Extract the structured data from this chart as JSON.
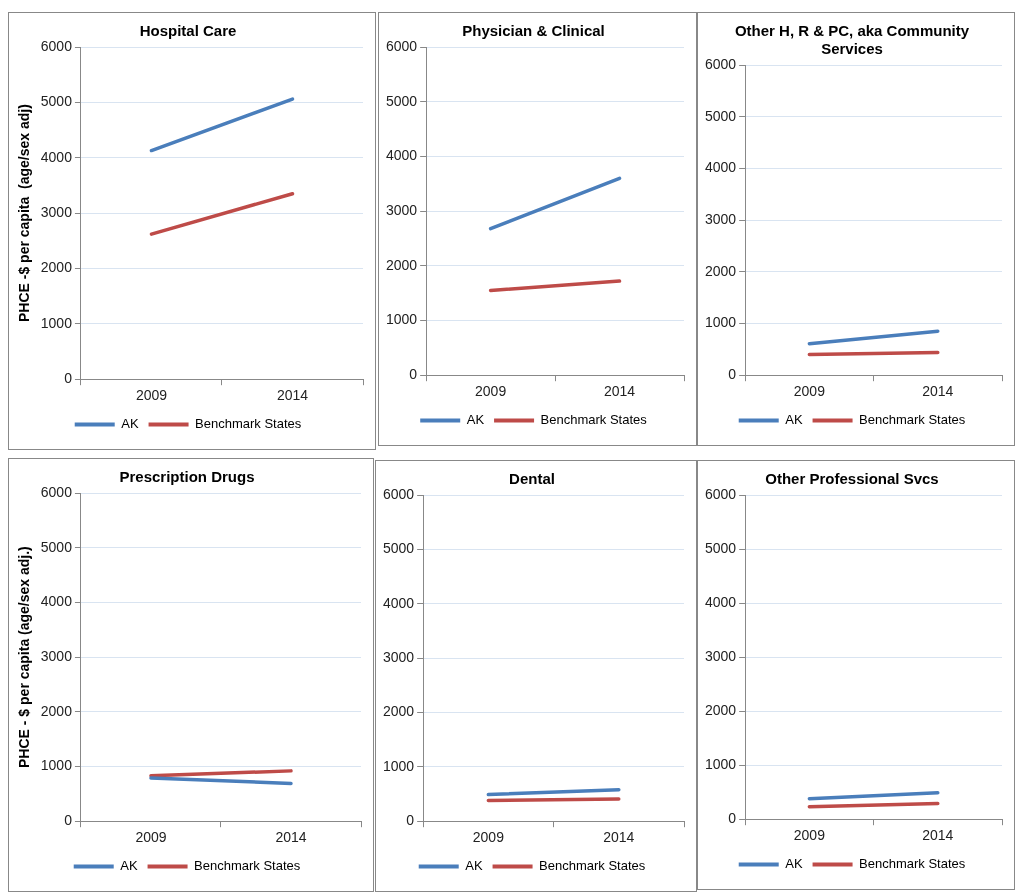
{
  "chart_data": [
    {
      "type": "line",
      "title": "Hospital Care",
      "ylabel": "PHCE -$ per capita  (age/sex adj)",
      "categories": [
        "2009",
        "2014"
      ],
      "series": [
        {
          "name": "AK",
          "color": "#4a7ebb",
          "values": [
            4130,
            5060
          ]
        },
        {
          "name": "Benchmark States",
          "color": "#be4b48",
          "values": [
            2620,
            3350
          ]
        }
      ],
      "ylim": [
        0,
        6000
      ],
      "yticks": [
        0,
        1000,
        2000,
        3000,
        4000,
        5000,
        6000
      ],
      "grid": "y",
      "legend": "bottom",
      "marker": "none",
      "line_style": "solid"
    },
    {
      "type": "line",
      "title": "Physician & Clinical",
      "categories": [
        "2009",
        "2014"
      ],
      "series": [
        {
          "name": "AK",
          "color": "#4a7ebb",
          "values": [
            2680,
            3600
          ]
        },
        {
          "name": "Benchmark States",
          "color": "#be4b48",
          "values": [
            1550,
            1720
          ]
        }
      ],
      "ylim": [
        0,
        6000
      ],
      "yticks": [
        0,
        1000,
        2000,
        3000,
        4000,
        5000,
        6000
      ],
      "grid": "y",
      "legend": "bottom",
      "marker": "none",
      "line_style": "solid"
    },
    {
      "type": "line",
      "title": "Other H, R & PC, aka Community Services",
      "categories": [
        "2009",
        "2014"
      ],
      "series": [
        {
          "name": "AK",
          "color": "#4a7ebb",
          "values": [
            610,
            850
          ]
        },
        {
          "name": "Benchmark States",
          "color": "#be4b48",
          "values": [
            400,
            440
          ]
        }
      ],
      "ylim": [
        0,
        6000
      ],
      "yticks": [
        0,
        1000,
        2000,
        3000,
        4000,
        5000,
        6000
      ],
      "grid": "y",
      "legend": "bottom",
      "marker": "none",
      "line_style": "solid"
    },
    {
      "type": "line",
      "title": "Prescription Drugs",
      "ylabel": "PHCE - $ per capita (age/sex adj.)",
      "categories": [
        "2009",
        "2014"
      ],
      "series": [
        {
          "name": "AK",
          "color": "#4a7ebb",
          "values": [
            790,
            690
          ]
        },
        {
          "name": "Benchmark States",
          "color": "#be4b48",
          "values": [
            830,
            920
          ]
        }
      ],
      "ylim": [
        0,
        6000
      ],
      "yticks": [
        0,
        1000,
        2000,
        3000,
        4000,
        5000,
        6000
      ],
      "grid": "y",
      "legend": "bottom",
      "marker": "none",
      "line_style": "solid"
    },
    {
      "type": "line",
      "title": "Dental",
      "categories": [
        "2009",
        "2014"
      ],
      "series": [
        {
          "name": "AK",
          "color": "#4a7ebb",
          "values": [
            490,
            580
          ]
        },
        {
          "name": "Benchmark States",
          "color": "#be4b48",
          "values": [
            380,
            410
          ]
        }
      ],
      "ylim": [
        0,
        6000
      ],
      "yticks": [
        0,
        1000,
        2000,
        3000,
        4000,
        5000,
        6000
      ],
      "grid": "y",
      "legend": "bottom",
      "marker": "none",
      "line_style": "solid"
    },
    {
      "type": "line",
      "title": "Other Professional Svcs",
      "categories": [
        "2009",
        "2014"
      ],
      "series": [
        {
          "name": "AK",
          "color": "#4a7ebb",
          "values": [
            380,
            490
          ]
        },
        {
          "name": "Benchmark States",
          "color": "#be4b48",
          "values": [
            230,
            290
          ]
        }
      ],
      "ylim": [
        0,
        6000
      ],
      "yticks": [
        0,
        1000,
        2000,
        3000,
        4000,
        5000,
        6000
      ],
      "grid": "y",
      "legend": "bottom",
      "marker": "none",
      "line_style": "solid"
    }
  ]
}
